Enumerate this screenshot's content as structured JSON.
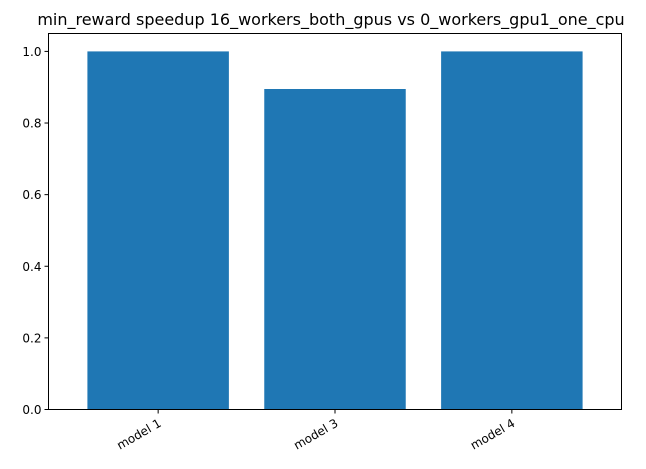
{
  "chart_data": {
    "type": "bar",
    "title": "min_reward speedup 16_workers_both_gpus vs 0_workers_gpu1_one_cpu",
    "xlabel": "",
    "ylabel": "",
    "categories": [
      "model 1",
      "model 3",
      "model 4"
    ],
    "values": [
      1.0,
      0.895,
      1.0
    ],
    "ylim": [
      0,
      1.05
    ],
    "yticks": [
      0.0,
      0.2,
      0.4,
      0.6,
      0.8,
      1.0
    ],
    "ytick_labels": [
      "0.0",
      "0.2",
      "0.4",
      "0.6",
      "0.8",
      "1.0"
    ],
    "xtick_rotation": "30 degrees, right-aligned",
    "bar_color": "#1f77b4",
    "grid": false,
    "legend": "none"
  }
}
